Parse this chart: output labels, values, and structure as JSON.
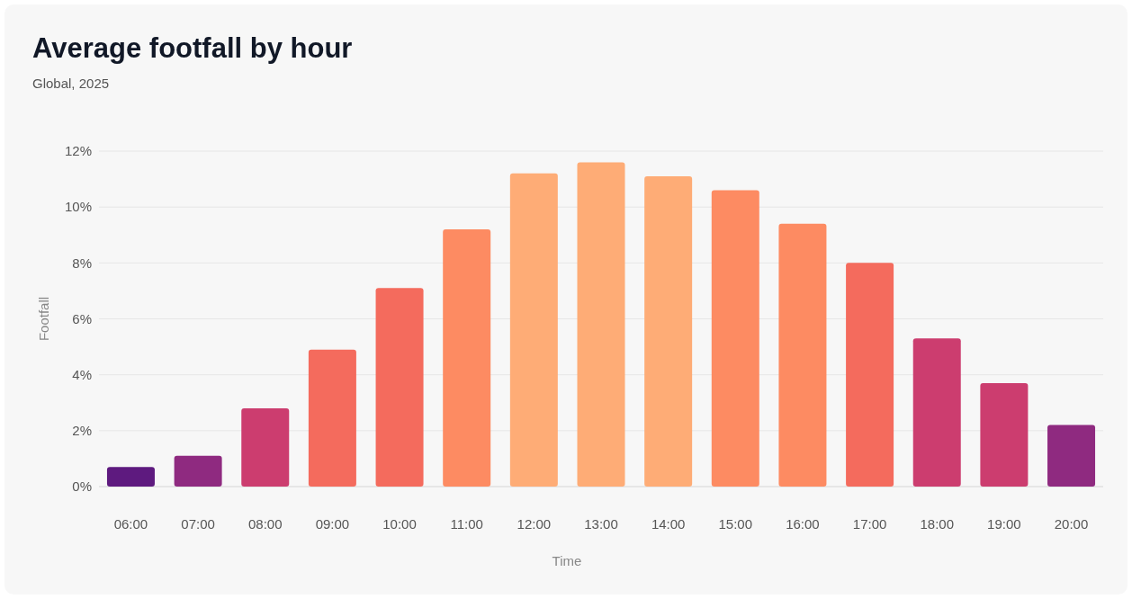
{
  "chart_data": {
    "type": "bar",
    "title": "Average footfall by hour",
    "subtitle": "Global, 2025",
    "xlabel": "Time",
    "ylabel": "Footfall",
    "categories": [
      "06:00",
      "07:00",
      "08:00",
      "09:00",
      "10:00",
      "11:00",
      "12:00",
      "13:00",
      "14:00",
      "15:00",
      "16:00",
      "17:00",
      "18:00",
      "19:00",
      "20:00"
    ],
    "values": [
      0.7,
      1.1,
      2.8,
      4.9,
      7.1,
      9.2,
      11.2,
      11.6,
      11.1,
      10.6,
      9.4,
      8.0,
      5.3,
      3.7,
      2.2
    ],
    "colors": [
      "#5e1a7f",
      "#8f2a80",
      "#cc3d6f",
      "#f46b5d",
      "#f46b5d",
      "#fd8b62",
      "#feac76",
      "#feac76",
      "#feac76",
      "#fd8b62",
      "#fd8b62",
      "#f46b5d",
      "#cc3d6f",
      "#cc3d6f",
      "#8f2a80"
    ],
    "ylim": [
      0,
      12
    ],
    "yticks": [
      {
        "value": 0,
        "label": "0%"
      },
      {
        "value": 2,
        "label": "2%"
      },
      {
        "value": 4,
        "label": "4%"
      },
      {
        "value": 6,
        "label": "6%"
      },
      {
        "value": 8,
        "label": "8%"
      },
      {
        "value": 10,
        "label": "10%"
      },
      {
        "value": 12,
        "label": "12%"
      }
    ],
    "grid": "y"
  }
}
